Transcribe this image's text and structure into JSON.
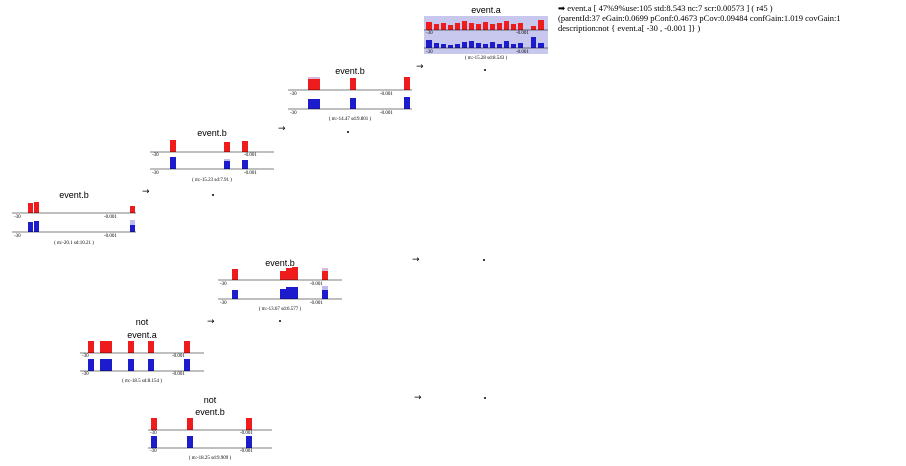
{
  "colors": {
    "positive": "#ee1c1c",
    "negative": "#1c1ccc",
    "light_positive": "#d9b8d8",
    "light_negative": "#bcbcee",
    "highlight": "#c8c8ef"
  },
  "arrow_glyph": "→",
  "nodes": {
    "root": {
      "lines": [
        "event.b"
      ],
      "lo": "-30",
      "hi": "-0.001",
      "stat": "( m:-20.1  sd:10.21 )"
    },
    "b2": {
      "lines": [
        "event.b"
      ],
      "lo": "-30",
      "hi": "-0.001",
      "stat": "( m:-15.23  sd:7.91 )"
    },
    "b3": {
      "lines": [
        "event.b"
      ],
      "lo": "-30",
      "hi": "-0.001",
      "stat": "( m:-14.47  sd:9.801 )"
    },
    "a4": {
      "lines": [
        "event.a"
      ],
      "lo": "-30",
      "hi": "-0.001",
      "stat": "( m:-15.28  sd:8.543 )"
    },
    "b5": {
      "lines": [
        "event.b"
      ],
      "lo": "-30",
      "hi": "-0.001",
      "stat": "( m:-13.67  sd:6.577 )"
    },
    "nota": {
      "lines": [
        "not",
        "event.a"
      ],
      "lo": "-30",
      "hi": "-0.001",
      "stat": "( m:-18.5  sd:8.154 )"
    },
    "notb": {
      "lines": [
        "not",
        "event.b"
      ],
      "lo": "-30",
      "hi": "-0.001",
      "stat": "( m:-18.25  sd:9.909 )"
    }
  },
  "info": {
    "line1": "➡ event.a [ 47%9%use:105 std:8.543 nc:7 scr:0.00573 ] ( r45 )",
    "line2": "(parentId:37 eGain:0.0699 pConf:0.4673 pCov:0.09484 confGain:1.019 covGain:1",
    "line3": "description:not { event.a[ -30 , -0.001 ]} )"
  }
}
